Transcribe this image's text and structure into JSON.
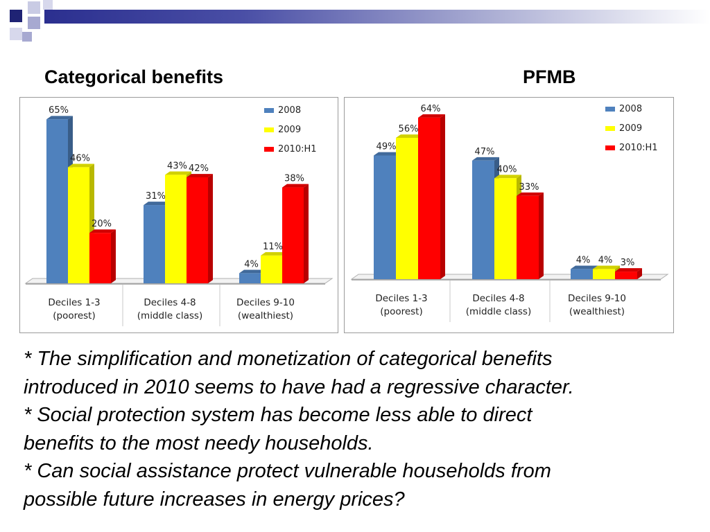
{
  "slide": {
    "left_title": "Categorical benefits",
    "right_title": "PFMB",
    "notes": [
      "* The simplification and monetization of categorical benefits",
      "introduced in 2010 seems to have had a regressive character.",
      "* Social protection system has become less able to direct",
      "benefits to the most needy households.",
      "* Can social assistance protect vulnerable households from",
      "possible future increases in energy prices?"
    ]
  },
  "colors": {
    "series_2008": "#4f81bd",
    "series_2009": "#ffff00",
    "series_2010": "#ff0000",
    "decor_dark": "#1f2374",
    "decor_light": "#a7a9d1"
  },
  "chart_data": [
    {
      "type": "bar",
      "title": "Categorical benefits",
      "categories": [
        "Deciles 1-3\n(poorest)",
        "Deciles 4-8\n(middle class)",
        "Deciles 9-10\n(wealthiest)"
      ],
      "series": [
        {
          "name": "2008",
          "values": [
            65,
            31,
            4
          ],
          "labels": [
            "65%",
            "31%",
            "4%"
          ]
        },
        {
          "name": "2009",
          "values": [
            46,
            43,
            11
          ],
          "labels": [
            "46%",
            "43%",
            "11%"
          ]
        },
        {
          "name": "2010:H1",
          "values": [
            20,
            42,
            38
          ],
          "labels": [
            "20%",
            "42%",
            "38%"
          ]
        }
      ],
      "ylim": [
        0,
        70
      ],
      "grid": false,
      "legend": "top-right"
    },
    {
      "type": "bar",
      "title": "PFMB",
      "categories": [
        "Deciles 1-3\n(poorest)",
        "Deciles 4-8\n(middle class)",
        "Deciles 9-10\n(wealthiest)"
      ],
      "series": [
        {
          "name": "2008",
          "values": [
            49,
            47,
            4
          ],
          "labels": [
            "49%",
            "47%",
            "4%"
          ]
        },
        {
          "name": "2009",
          "values": [
            56,
            40,
            4
          ],
          "labels": [
            "56%",
            "40%",
            "4%"
          ]
        },
        {
          "name": "2010:H1",
          "values": [
            64,
            33,
            3
          ],
          "labels": [
            "64%",
            "33%",
            "3%"
          ]
        }
      ],
      "ylim": [
        0,
        70
      ],
      "grid": false,
      "legend": "top-right"
    }
  ]
}
